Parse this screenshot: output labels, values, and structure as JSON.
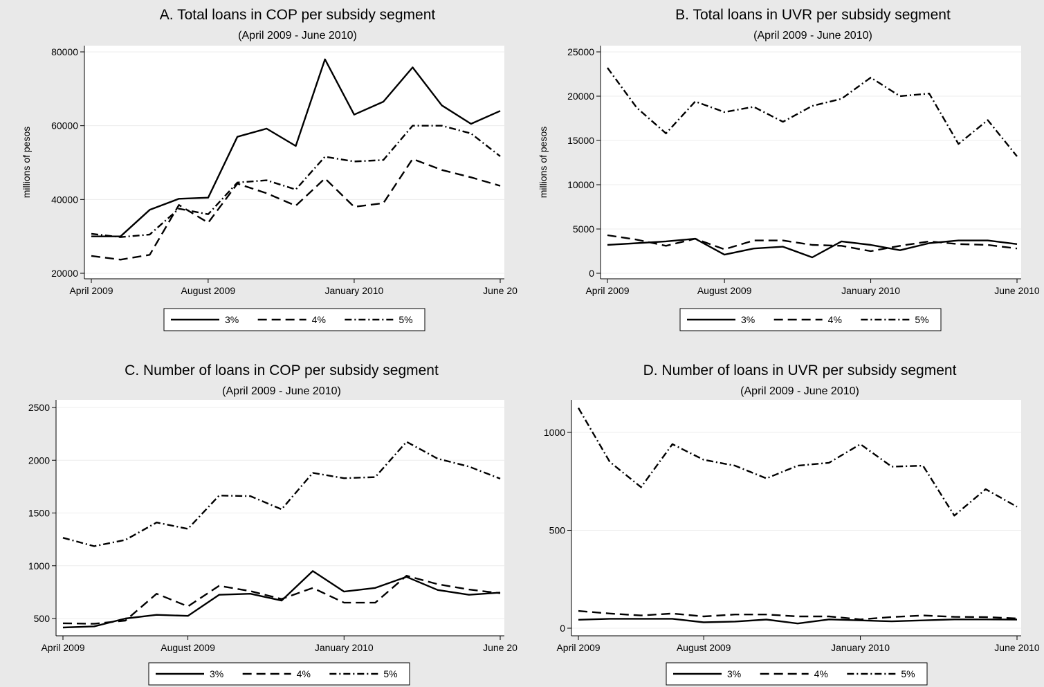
{
  "chart_data": [
    {
      "type": "line",
      "title": "A. Total loans in COP per subsidy segment",
      "subtitle": "(April 2009 - June 2010)",
      "ylabel": "millions of pesos",
      "xlabel": "",
      "x_ticks": [
        {
          "x": 0,
          "label": "April 2009"
        },
        {
          "x": 4,
          "label": "August 2009"
        },
        {
          "x": 9,
          "label": "January 2010"
        },
        {
          "x": 14,
          "label": "June 20"
        }
      ],
      "xlim": [
        0,
        14
      ],
      "ylim": [
        20000,
        80000
      ],
      "y_ticks": [
        20000,
        40000,
        60000,
        80000
      ],
      "grid": true,
      "legend_position": "bottom",
      "series": [
        {
          "name": "3%",
          "dash": "solid",
          "values": [
            30000,
            30000,
            37200,
            40200,
            40500,
            57000,
            59200,
            54500,
            78000,
            63000,
            66500,
            75800,
            65500,
            60500,
            64000
          ]
        },
        {
          "name": "4%",
          "dash": "dash",
          "values": [
            24700,
            23700,
            25000,
            38500,
            33700,
            44300,
            41700,
            38300,
            45700,
            38000,
            39000,
            51000,
            48000,
            46000,
            43700
          ]
        },
        {
          "name": "5%",
          "dash": "dashdot",
          "values": [
            30700,
            29800,
            30500,
            37500,
            36000,
            44600,
            45200,
            42700,
            51600,
            50300,
            50700,
            60000,
            60000,
            57900,
            51700
          ]
        }
      ]
    },
    {
      "type": "line",
      "title": "B. Total loans in UVR per subsidy segment",
      "subtitle": "(April 2009 - June 2010)",
      "ylabel": "millions of pesos",
      "xlabel": "",
      "x_ticks": [
        {
          "x": 0,
          "label": "April 2009"
        },
        {
          "x": 4,
          "label": "August 2009"
        },
        {
          "x": 9,
          "label": "January 2010"
        },
        {
          "x": 14,
          "label": "June 2010"
        }
      ],
      "xlim": [
        0,
        14
      ],
      "ylim": [
        0,
        25000
      ],
      "y_ticks": [
        0,
        5000,
        10000,
        15000,
        20000,
        25000
      ],
      "grid": true,
      "legend_position": "bottom",
      "series": [
        {
          "name": "3%",
          "dash": "solid",
          "values": [
            3200,
            3400,
            3600,
            3900,
            2100,
            2800,
            3000,
            1800,
            3600,
            3200,
            2600,
            3400,
            3700,
            3700,
            3300
          ]
        },
        {
          "name": "4%",
          "dash": "dash",
          "values": [
            4300,
            3800,
            3100,
            3900,
            2700,
            3700,
            3700,
            3200,
            3100,
            2500,
            3100,
            3600,
            3300,
            3200,
            2800
          ]
        },
        {
          "name": "5%",
          "dash": "dashdot",
          "values": [
            23200,
            18700,
            15800,
            19400,
            18200,
            18800,
            17100,
            18900,
            19700,
            22100,
            20000,
            20300,
            14600,
            17300,
            13200
          ]
        }
      ]
    },
    {
      "type": "line",
      "title": "C. Number of loans in COP per subsidy segment",
      "subtitle": "(April 2009 - June 2010)",
      "ylabel": "",
      "xlabel": "",
      "x_ticks": [
        {
          "x": 0,
          "label": "April 2009"
        },
        {
          "x": 4,
          "label": "August 2009"
        },
        {
          "x": 9,
          "label": "January 2010"
        },
        {
          "x": 14,
          "label": "June 20"
        }
      ],
      "xlim": [
        0,
        14
      ],
      "ylim": [
        500,
        2500
      ],
      "y_ticks": [
        500,
        1000,
        1500,
        2000,
        2500
      ],
      "grid": true,
      "legend_position": "bottom",
      "series": [
        {
          "name": "3%",
          "dash": "solid",
          "values": [
            415,
            425,
            500,
            535,
            525,
            725,
            735,
            670,
            950,
            755,
            790,
            895,
            770,
            725,
            745
          ]
        },
        {
          "name": "4%",
          "dash": "dash",
          "values": [
            455,
            450,
            480,
            735,
            615,
            810,
            760,
            685,
            790,
            650,
            650,
            905,
            825,
            775,
            740
          ]
        },
        {
          "name": "5%",
          "dash": "dashdot",
          "values": [
            1265,
            1185,
            1245,
            1410,
            1350,
            1665,
            1660,
            1535,
            1880,
            1830,
            1840,
            2175,
            2015,
            1940,
            1825
          ]
        }
      ]
    },
    {
      "type": "line",
      "title": "D. Number of loans in UVR per subsidy segment",
      "subtitle": "(April 2009 - June 2010)",
      "ylabel": "",
      "xlabel": "",
      "x_ticks": [
        {
          "x": 0,
          "label": "April 2009"
        },
        {
          "x": 4,
          "label": "August 2009"
        },
        {
          "x": 9,
          "label": "January 2010"
        },
        {
          "x": 14,
          "label": "June 2010"
        }
      ],
      "xlim": [
        0,
        14
      ],
      "ylim": [
        0,
        1000
      ],
      "y_ticks": [
        0,
        500,
        1000
      ],
      "grid": true,
      "legend_position": "bottom",
      "series": [
        {
          "name": "3%",
          "dash": "solid",
          "values": [
            43,
            48,
            48,
            48,
            30,
            34,
            44,
            24,
            45,
            40,
            35,
            40,
            45,
            45,
            44
          ]
        },
        {
          "name": "4%",
          "dash": "dash",
          "values": [
            88,
            75,
            65,
            75,
            60,
            70,
            70,
            60,
            60,
            45,
            57,
            65,
            58,
            57,
            50
          ]
        },
        {
          "name": "5%",
          "dash": "dashdot",
          "values": [
            1125,
            850,
            720,
            940,
            860,
            830,
            765,
            830,
            845,
            940,
            825,
            830,
            575,
            710,
            620
          ]
        }
      ]
    }
  ],
  "legend": {
    "labels": [
      "3%",
      "4%",
      "5%"
    ]
  }
}
